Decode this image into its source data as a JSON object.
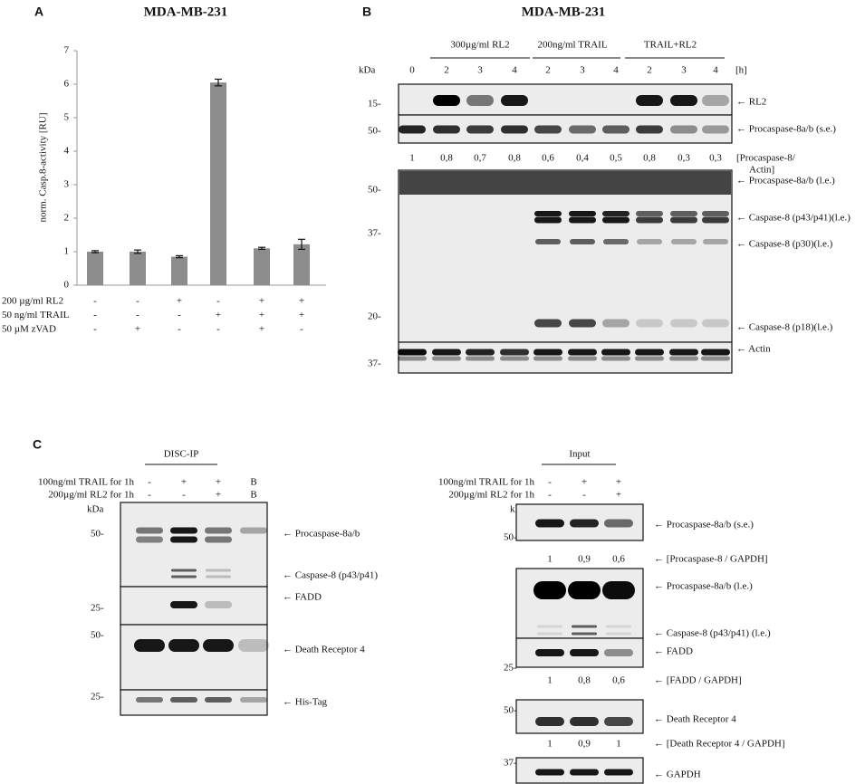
{
  "chart_data": {
    "type": "bar",
    "panel": "A",
    "title": "MDA-MB-231",
    "ylabel": "norm. Casp.8-activity [RU]",
    "ylim": [
      0,
      7
    ],
    "yticks": [
      0,
      1,
      2,
      3,
      4,
      5,
      6,
      7
    ],
    "color": "#8c8c8c",
    "values": [
      1.0,
      1.0,
      0.85,
      6.05,
      1.1,
      1.22
    ],
    "errors": [
      0.03,
      0.05,
      0.03,
      0.1,
      0.03,
      0.15
    ],
    "treatments": [
      {
        "label": "200 µg/ml RL2",
        "signs": [
          "-",
          "-",
          "+",
          "-",
          "+",
          "+"
        ]
      },
      {
        "label": "50 ng/ml TRAIL",
        "signs": [
          "-",
          "-",
          "-",
          "+",
          "+",
          "+"
        ]
      },
      {
        "label": "50 µM zVAD",
        "signs": [
          "-",
          "+",
          "-",
          "-",
          "+",
          "-"
        ]
      }
    ]
  },
  "panel_b": {
    "label": "B",
    "title": "MDA-MB-231",
    "groups": [
      "300µg/ml RL2",
      "200ng/ml TRAIL",
      "TRAIL+RL2"
    ],
    "kda": "kDa",
    "time_unit": "[h]",
    "times": [
      "0",
      "2",
      "3",
      "4",
      "2",
      "3",
      "4",
      "2",
      "3",
      "4"
    ],
    "markers": [
      "15-",
      "50-",
      "50-",
      "37-",
      "20-",
      "37-"
    ],
    "blot_labels": [
      "← RL2",
      "← Procaspase-8a/b (s.e.)",
      "← Procaspase-8a/b (l.e.)",
      "← Caspase-8 (p43/p41)(l.e.)",
      "←  Caspase-8 (p30)(l.e.)",
      "← Caspase-8 (p18)(l.e.)",
      "← Actin"
    ],
    "ratios": [
      "1",
      "0,8",
      "0,7",
      "0,8",
      "0,6",
      "0,4",
      "0,5",
      "0,8",
      "0,3",
      "0,3"
    ],
    "ratio_label": [
      "[Procaspase-8/",
      "Actin]"
    ]
  },
  "panel_c": {
    "label": "C",
    "disc_ip": {
      "title": "DISC-IP",
      "conditions": [
        {
          "label": "100ng/ml TRAIL for 1h",
          "signs": [
            "-",
            "+",
            "+",
            "B"
          ]
        },
        {
          "label": "200µg/ml RL2 for 1h",
          "signs": [
            "-",
            "-",
            "+",
            "B"
          ]
        }
      ],
      "kda": "kDa",
      "markers": [
        "50-",
        "25-",
        "50-",
        "25-"
      ],
      "blot_labels": [
        "← Procaspase-8a/b",
        "← Caspase-8 (p43/p41)",
        "← FADD",
        "← Death Receptor 4",
        "← His-Tag"
      ]
    },
    "input": {
      "title": "Input",
      "conditions": [
        {
          "label": "100ng/ml TRAIL for 1h",
          "signs": [
            "-",
            "+",
            "+"
          ]
        },
        {
          "label": "200µg/ml RL2 for 1h",
          "signs": [
            "-",
            "-",
            "+"
          ]
        }
      ],
      "kda": "kDa",
      "markers": [
        "50-",
        "25-",
        "50-",
        "37-"
      ],
      "blot_labels": [
        "← Procaspase-8a/b (s.e.)",
        "← Procaspase-8a/b (l.e.)",
        "← Caspase-8 (p43/p41) (l.e.)",
        "← FADD",
        "← Death Receptor 4",
        "← GAPDH"
      ],
      "ratios": [
        {
          "values": [
            "1",
            "0,9",
            "0,6"
          ],
          "label": "← [Procaspase-8 / GAPDH]"
        },
        {
          "values": [
            "1",
            "0,8",
            "0,6"
          ],
          "label": "← [FADD / GAPDH]"
        },
        {
          "values": [
            "1",
            "0,9",
            "1"
          ],
          "label": "← [Death Receptor 4 / GAPDH]"
        }
      ]
    }
  }
}
